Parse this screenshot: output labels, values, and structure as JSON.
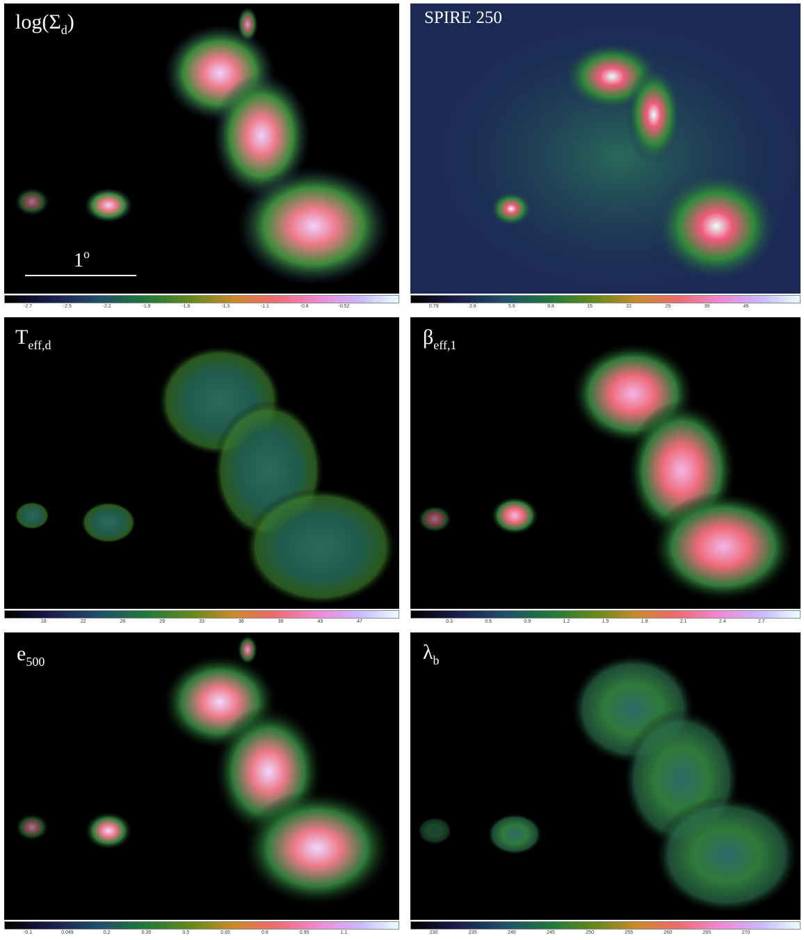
{
  "panels": [
    {
      "label_main": "log(Σ",
      "label_sub": "d",
      "label_tail": ")",
      "colorbar_ticks": [
        "-2.7",
        "-2.5",
        "-2.2",
        "-1.9",
        "-1.6",
        "-1.3",
        "-1.1",
        "-0.8",
        "-0.52"
      ],
      "scale_label": "1",
      "scale_sup": "o"
    },
    {
      "label_main": "SPIRE 250",
      "colorbar_ticks": [
        "0.79",
        "2.6",
        "5.6",
        "9.8",
        "15",
        "22",
        "29",
        "39",
        "49"
      ]
    },
    {
      "label_main": "T",
      "label_sub": "eff,d",
      "colorbar_ticks": [
        "18",
        "22",
        "26",
        "29",
        "33",
        "36",
        "39",
        "43",
        "47"
      ]
    },
    {
      "label_main": "β",
      "label_sub": "eff,1",
      "colorbar_ticks": [
        "0.3",
        "0.6",
        "0.9",
        "1.2",
        "1.5",
        "1.8",
        "2.1",
        "2.4",
        "2.7"
      ]
    },
    {
      "label_main": "e",
      "label_sub": "500",
      "colorbar_ticks": [
        "-0.1",
        "0.049",
        "0.2",
        "0.35",
        "0.5",
        "0.65",
        "0.8",
        "0.95",
        "1.1"
      ]
    },
    {
      "label_main": "λ",
      "label_sub": "b",
      "colorbar_ticks": [
        "230",
        "235",
        "240",
        "245",
        "250",
        "255",
        "260",
        "265",
        "270"
      ]
    }
  ]
}
